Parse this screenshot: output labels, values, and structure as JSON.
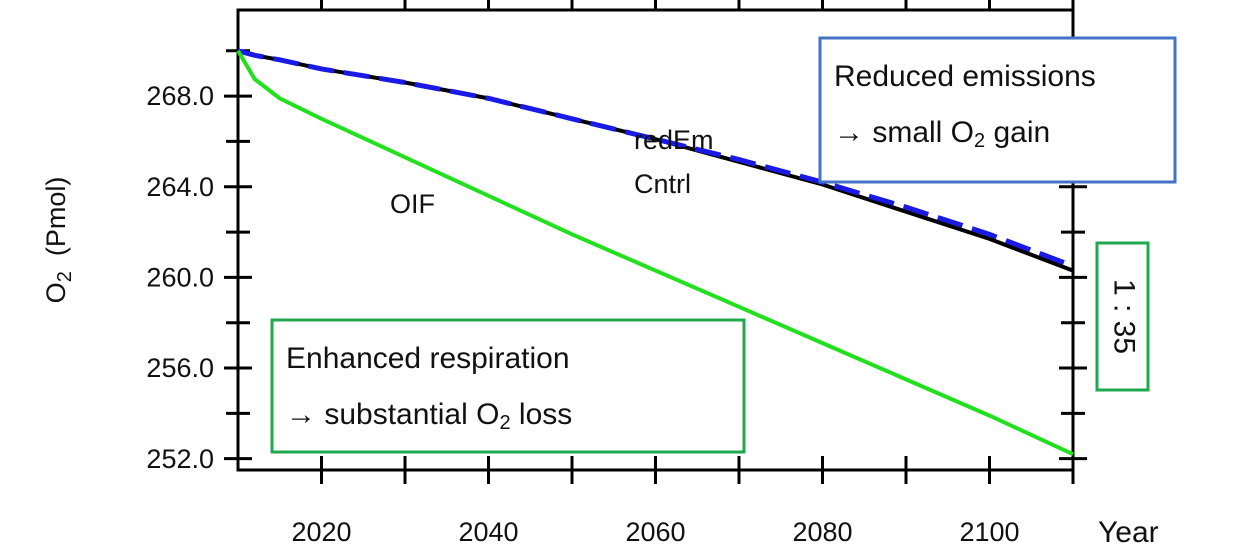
{
  "chart_data": {
    "type": "line",
    "xlabel": "Year",
    "ylabel": [
      "O",
      "2",
      "  (Pmol)"
    ],
    "x": [
      2010,
      2012,
      2015,
      2020,
      2030,
      2040,
      2050,
      2060,
      2070,
      2080,
      2090,
      2100,
      2110
    ],
    "series": [
      {
        "name": "Cntrl",
        "color": "#000000",
        "dashed": false,
        "values": [
          270.0,
          269.8,
          269.6,
          269.2,
          268.6,
          267.9,
          267.0,
          266.1,
          265.1,
          264.1,
          262.9,
          261.7,
          260.3
        ]
      },
      {
        "name": "redEm",
        "color": "#1a1ae6",
        "dashed": true,
        "values": [
          270.0,
          269.8,
          269.6,
          269.2,
          268.6,
          267.9,
          267.0,
          266.1,
          265.2,
          264.2,
          263.1,
          261.9,
          260.5
        ]
      },
      {
        "name": "OIF",
        "color": "#22e01e",
        "dashed": false,
        "values": [
          270.0,
          268.75,
          267.9,
          267.0,
          265.3,
          263.6,
          261.9,
          260.3,
          258.7,
          257.1,
          255.5,
          253.9,
          252.2
        ]
      }
    ],
    "xlim": [
      2010,
      2110
    ],
    "ylim": [
      251.5,
      271.8
    ],
    "xticks": [
      2020,
      2040,
      2060,
      2080,
      2100
    ],
    "xticks_minor": [
      2030,
      2050,
      2070,
      2090,
      2110
    ],
    "yticks": [
      {
        "value": 252,
        "label": "252.0"
      },
      {
        "value": 256,
        "label": "256.0"
      },
      {
        "value": 260,
        "label": "260.0"
      },
      {
        "value": 264,
        "label": "264.0"
      },
      {
        "value": 268,
        "label": "268.0"
      }
    ],
    "yticks_minor": [
      254,
      258,
      262,
      266,
      270
    ],
    "annotations": [
      {
        "lines": [
          [
            "Reduced emissions"
          ],
          [
            "→ small O",
            "2",
            " gain"
          ]
        ],
        "color": "#4472c4"
      },
      {
        "lines": [
          [
            "Enhanced respiration"
          ],
          [
            "→ substantial O",
            "2",
            " loss"
          ]
        ],
        "color": "#1fa84f"
      },
      {
        "lines": [
          [
            "1 : 35"
          ]
        ],
        "color": "#1fa84f"
      }
    ]
  }
}
